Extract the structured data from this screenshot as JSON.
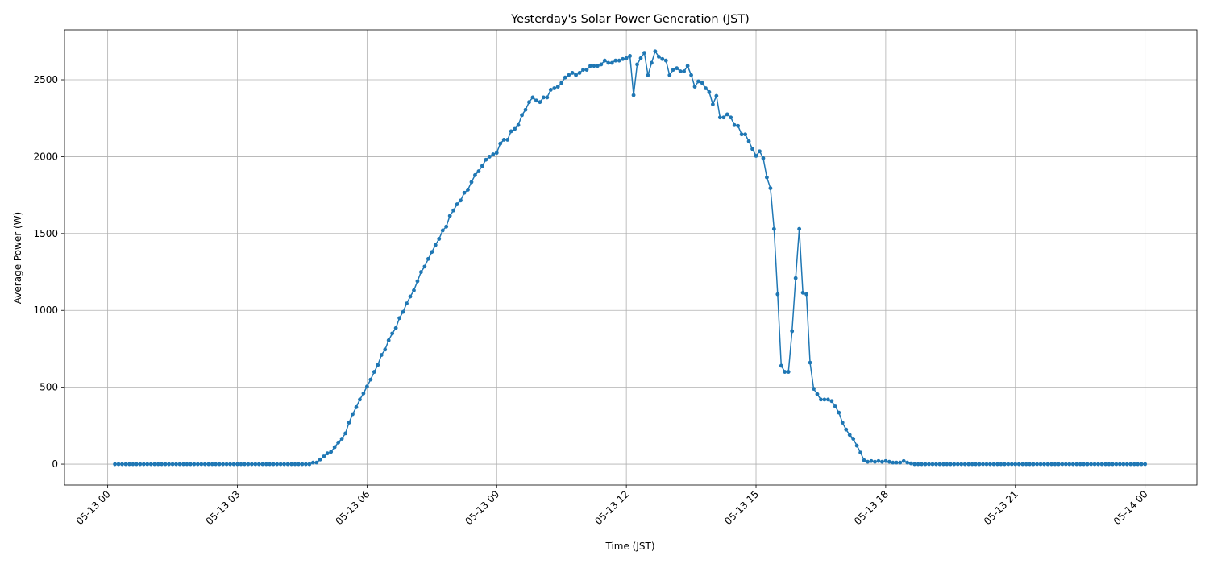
{
  "chart_data": {
    "type": "line",
    "title": "Yesterday's Solar Power Generation (JST)",
    "xlabel": "Time (JST)",
    "ylabel": "Average Power (W)",
    "color": "#1f77b4",
    "grid": true,
    "xlim": [
      -60,
      1512
    ],
    "ylim": [
      -136,
      2825
    ],
    "xticks": [
      {
        "value": 0,
        "label": "05-13 00"
      },
      {
        "value": 180,
        "label": "05-13 03"
      },
      {
        "value": 360,
        "label": "05-13 06"
      },
      {
        "value": 540,
        "label": "05-13 09"
      },
      {
        "value": 720,
        "label": "05-13 12"
      },
      {
        "value": 900,
        "label": "05-13 15"
      },
      {
        "value": 1080,
        "label": "05-13 18"
      },
      {
        "value": 1260,
        "label": "05-13 21"
      },
      {
        "value": 1440,
        "label": "05-14 00"
      }
    ],
    "yticks": [
      0,
      500,
      1000,
      1500,
      2000,
      2500
    ],
    "x": [
      10,
      15,
      20,
      25,
      30,
      35,
      40,
      45,
      50,
      55,
      60,
      65,
      70,
      75,
      80,
      85,
      90,
      95,
      100,
      105,
      110,
      115,
      120,
      125,
      130,
      135,
      140,
      145,
      150,
      155,
      160,
      165,
      170,
      175,
      180,
      185,
      190,
      195,
      200,
      205,
      210,
      215,
      220,
      225,
      230,
      235,
      240,
      245,
      250,
      255,
      260,
      265,
      270,
      275,
      280,
      285,
      290,
      295,
      300,
      305,
      310,
      315,
      320,
      325,
      330,
      335,
      340,
      345,
      350,
      355,
      360,
      365,
      370,
      375,
      380,
      385,
      390,
      395,
      400,
      405,
      410,
      415,
      420,
      425,
      430,
      435,
      440,
      445,
      450,
      455,
      460,
      465,
      470,
      475,
      480,
      485,
      490,
      495,
      500,
      505,
      510,
      515,
      520,
      525,
      530,
      535,
      540,
      545,
      550,
      555,
      560,
      565,
      570,
      575,
      580,
      585,
      590,
      595,
      600,
      605,
      610,
      615,
      620,
      625,
      630,
      635,
      640,
      645,
      650,
      655,
      660,
      665,
      670,
      675,
      680,
      685,
      690,
      695,
      700,
      705,
      710,
      715,
      720,
      725,
      730,
      735,
      740,
      745,
      750,
      755,
      760,
      765,
      770,
      775,
      780,
      785,
      790,
      795,
      800,
      805,
      810,
      815,
      820,
      825,
      830,
      835,
      840,
      845,
      850,
      855,
      860,
      865,
      870,
      875,
      880,
      885,
      890,
      895,
      900,
      905,
      910,
      915,
      920,
      925,
      930,
      935,
      940,
      945,
      950,
      955,
      960,
      965,
      970,
      975,
      980,
      985,
      990,
      995,
      1000,
      1005,
      1010,
      1015,
      1020,
      1025,
      1030,
      1035,
      1040,
      1045,
      1050,
      1055,
      1060,
      1065,
      1070,
      1075,
      1080,
      1085,
      1090,
      1095,
      1100,
      1105,
      1110,
      1115,
      1120,
      1125,
      1130,
      1135,
      1140,
      1145,
      1150,
      1155,
      1160,
      1165,
      1170,
      1175,
      1180,
      1185,
      1190,
      1195,
      1200,
      1205,
      1210,
      1215,
      1220,
      1225,
      1230,
      1235,
      1240,
      1245,
      1250,
      1255,
      1260,
      1265,
      1270,
      1275,
      1280,
      1285,
      1290,
      1295,
      1300,
      1305,
      1310,
      1315,
      1320,
      1325,
      1330,
      1335,
      1340,
      1345,
      1350,
      1355,
      1360,
      1365,
      1370,
      1375,
      1380,
      1385,
      1390,
      1395,
      1400,
      1405,
      1410,
      1415,
      1420,
      1425,
      1430,
      1435,
      1440
    ],
    "values": [
      0,
      0,
      0,
      0,
      0,
      0,
      0,
      0,
      0,
      0,
      0,
      0,
      0,
      0,
      0,
      0,
      0,
      0,
      0,
      0,
      0,
      0,
      0,
      0,
      0,
      0,
      0,
      0,
      0,
      0,
      0,
      0,
      0,
      0,
      0,
      0,
      0,
      0,
      0,
      0,
      0,
      0,
      0,
      0,
      0,
      0,
      0,
      0,
      0,
      0,
      0,
      0,
      0,
      0,
      0,
      10,
      10,
      30,
      50,
      70,
      80,
      110,
      140,
      165,
      200,
      270,
      325,
      370,
      420,
      460,
      505,
      550,
      600,
      645,
      710,
      745,
      805,
      850,
      885,
      950,
      990,
      1045,
      1090,
      1130,
      1190,
      1250,
      1285,
      1335,
      1380,
      1425,
      1465,
      1520,
      1545,
      1615,
      1650,
      1690,
      1715,
      1765,
      1785,
      1835,
      1880,
      1905,
      1940,
      1980,
      2000,
      2015,
      2025,
      2085,
      2110,
      2110,
      2165,
      2180,
      2205,
      2270,
      2305,
      2355,
      2385,
      2365,
      2355,
      2385,
      2385,
      2435,
      2445,
      2455,
      2480,
      2515,
      2530,
      2545,
      2530,
      2545,
      2565,
      2565,
      2590,
      2590,
      2590,
      2600,
      2625,
      2610,
      2610,
      2625,
      2625,
      2635,
      2640,
      2655,
      2400,
      2600,
      2640,
      2675,
      2530,
      2610,
      2685,
      2650,
      2635,
      2625,
      2530,
      2565,
      2575,
      2555,
      2555,
      2590,
      2530,
      2455,
      2490,
      2480,
      2445,
      2420,
      2340,
      2395,
      2255,
      2255,
      2275,
      2255,
      2205,
      2200,
      2145,
      2145,
      2100,
      2050,
      2005,
      2035,
      1990,
      1865,
      1795,
      1530,
      1105,
      640,
      600,
      600,
      865,
      1210,
      1530,
      1115,
      1105,
      660,
      490,
      455,
      420,
      420,
      420,
      410,
      375,
      335,
      270,
      225,
      190,
      165,
      120,
      75,
      25,
      15,
      20,
      15,
      20,
      15,
      20,
      15,
      10,
      10,
      10,
      20,
      10,
      5,
      0,
      0,
      0,
      0,
      0,
      0,
      0,
      0,
      0,
      0,
      0,
      0,
      0,
      0,
      0,
      0,
      0,
      0,
      0,
      0,
      0,
      0,
      0,
      0,
      0,
      0,
      0,
      0,
      0,
      0,
      0,
      0,
      0,
      0,
      0,
      0,
      0,
      0,
      0,
      0,
      0,
      0,
      0,
      0,
      0,
      0,
      0,
      0,
      0,
      0,
      0,
      0,
      0,
      0,
      0,
      0,
      0,
      0,
      0,
      0,
      0,
      0,
      0,
      0,
      0
    ]
  }
}
